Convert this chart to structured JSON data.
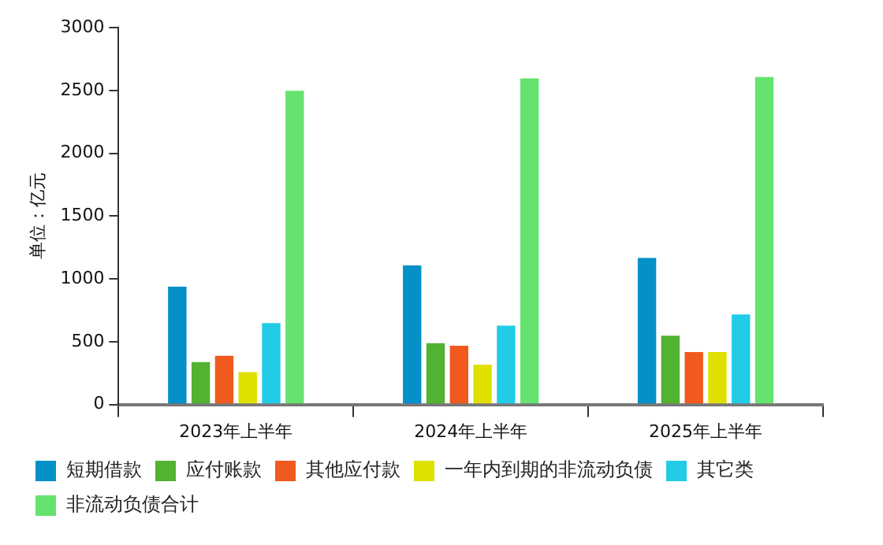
{
  "chart_data": {
    "type": "bar",
    "ylabel": "单位：亿元",
    "categories": [
      "2023年上半年",
      "2024年上半年",
      "2025年上半年"
    ],
    "series": [
      {
        "name": "短期借款",
        "color": "#0590c8",
        "values": [
          950,
          1120,
          1180
        ]
      },
      {
        "name": "应付账款",
        "color": "#52b232",
        "values": [
          350,
          500,
          560
        ]
      },
      {
        "name": "其他应付款",
        "color": "#f05a1e",
        "values": [
          400,
          480,
          430
        ]
      },
      {
        "name": "一年内到期的非流动负债",
        "color": "#e0e000",
        "values": [
          270,
          330,
          430
        ]
      },
      {
        "name": "其它类",
        "color": "#22cce6",
        "values": [
          660,
          640,
          730
        ]
      },
      {
        "name": "非流动负债合计",
        "color": "#66e36e",
        "values": [
          2510,
          2610,
          2620
        ]
      }
    ],
    "ylim": [
      0,
      3000
    ],
    "yticks": [
      0,
      500,
      1000,
      1500,
      2000,
      2500,
      3000
    ],
    "grid": false,
    "legend": "bottom"
  }
}
